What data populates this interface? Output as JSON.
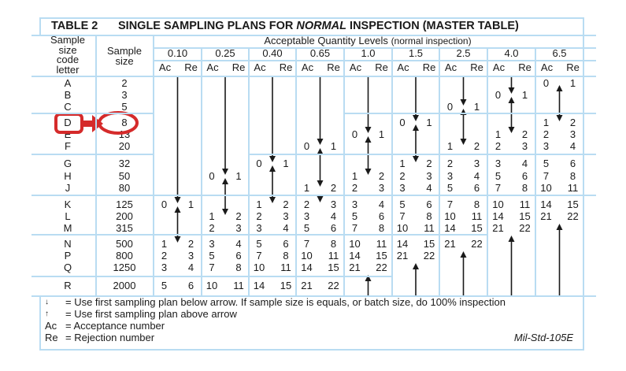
{
  "title": {
    "table_no": "TABLE 2",
    "prefix": "SINGLE SAMPLING PLANS FOR ",
    "emphasis": "NORMAL",
    "suffix": " INSPECTION (MASTER TABLE)"
  },
  "header": {
    "code_letter": [
      "Sample",
      "size",
      "code",
      "letter"
    ],
    "sample_size": [
      "Sample",
      "size"
    ],
    "aql_title": "Acceptable Quantity Levels",
    "aql_subtitle": "(normal inspection)",
    "ac": "Ac",
    "re": "Re"
  },
  "rows": [
    {
      "letter": "A",
      "size": "2"
    },
    {
      "letter": "B",
      "size": "3"
    },
    {
      "letter": "C",
      "size": "5"
    },
    {
      "letter": "D",
      "size": "8"
    },
    {
      "letter": "E",
      "size": "13"
    },
    {
      "letter": "F",
      "size": "20"
    },
    {
      "letter": "G",
      "size": "32"
    },
    {
      "letter": "H",
      "size": "50"
    },
    {
      "letter": "J",
      "size": "80"
    },
    {
      "letter": "K",
      "size": "125"
    },
    {
      "letter": "L",
      "size": "200"
    },
    {
      "letter": "M",
      "size": "315"
    },
    {
      "letter": "N",
      "size": "500"
    },
    {
      "letter": "P",
      "size": "800"
    },
    {
      "letter": "Q",
      "size": "1250"
    },
    {
      "letter": "R",
      "size": "2000"
    }
  ],
  "columns": [
    {
      "aql": "0.10",
      "down_to": "K",
      "link": [
        "K",
        "N"
      ],
      "up_to": null,
      "plans": {
        "K": [
          "0",
          "1"
        ],
        "N": [
          "1",
          "2"
        ],
        "P": [
          "2",
          "3"
        ],
        "Q": [
          "3",
          "4"
        ],
        "R": [
          "5",
          "6"
        ]
      }
    },
    {
      "aql": "0.25",
      "down_to": "H",
      "link": [
        "H",
        "L"
      ],
      "up_to": null,
      "plans": {
        "H": [
          "0",
          "1"
        ],
        "L": [
          "1",
          "2"
        ],
        "M": [
          "2",
          "3"
        ],
        "N": [
          "3",
          "4"
        ],
        "P": [
          "5",
          "6"
        ],
        "Q": [
          "7",
          "8"
        ],
        "R": [
          "10",
          "11"
        ]
      }
    },
    {
      "aql": "0.40",
      "down_to": "G",
      "link": [
        "G",
        "K"
      ],
      "up_to": null,
      "plans": {
        "G": [
          "0",
          "1"
        ],
        "K": [
          "1",
          "2"
        ],
        "L": [
          "2",
          "3"
        ],
        "M": [
          "3",
          "4"
        ],
        "N": [
          "5",
          "6"
        ],
        "P": [
          "7",
          "8"
        ],
        "Q": [
          "10",
          "11"
        ],
        "R": [
          "14",
          "15"
        ]
      }
    },
    {
      "aql": "0.65",
      "down_to": "F",
      "link": [
        "F",
        "J"
      ],
      "up_to": null,
      "extra_down_head": "K",
      "plans": {
        "F": [
          "0",
          "1"
        ],
        "J": [
          "1",
          "2"
        ],
        "K": [
          "2",
          "3"
        ],
        "L": [
          "3",
          "4"
        ],
        "M": [
          "5",
          "6"
        ],
        "N": [
          "7",
          "8"
        ],
        "P": [
          "10",
          "11"
        ],
        "Q": [
          "14",
          "15"
        ],
        "R": [
          "21",
          "22"
        ]
      }
    },
    {
      "aql": "1.0",
      "down_to": "E",
      "link": [
        "E",
        "H"
      ],
      "up_to": "Q",
      "plans": {
        "E": [
          "0",
          "1"
        ],
        "H": [
          "1",
          "2"
        ],
        "J": [
          "2",
          "3"
        ],
        "K": [
          "3",
          "4"
        ],
        "L": [
          "5",
          "6"
        ],
        "M": [
          "7",
          "8"
        ],
        "N": [
          "10",
          "11"
        ],
        "P": [
          "14",
          "15"
        ],
        "Q": [
          "21",
          "22"
        ]
      }
    },
    {
      "aql": "1.5",
      "down_to": "D",
      "link": [
        "D",
        "G"
      ],
      "up_to": "P",
      "plans": {
        "D": [
          "0",
          "1"
        ],
        "G": [
          "1",
          "2"
        ],
        "H": [
          "2",
          "3"
        ],
        "J": [
          "3",
          "4"
        ],
        "K": [
          "5",
          "6"
        ],
        "L": [
          "7",
          "8"
        ],
        "M": [
          "10",
          "11"
        ],
        "N": [
          "14",
          "15"
        ],
        "P": [
          "21",
          "22"
        ]
      }
    },
    {
      "aql": "2.5",
      "down_to": "C",
      "link": [
        "C",
        "F"
      ],
      "up_to": "N",
      "plans": {
        "C": [
          "0",
          "1"
        ],
        "F": [
          "1",
          "2"
        ],
        "G": [
          "2",
          "3"
        ],
        "H": [
          "3",
          "4"
        ],
        "J": [
          "5",
          "6"
        ],
        "K": [
          "7",
          "8"
        ],
        "L": [
          "10",
          "11"
        ],
        "M": [
          "14",
          "15"
        ],
        "N": [
          "21",
          "22"
        ]
      }
    },
    {
      "aql": "4.0",
      "down_to": "B",
      "link": [
        "B",
        "E"
      ],
      "up_to": "M",
      "plans": {
        "B": [
          "0",
          "1"
        ],
        "E": [
          "1",
          "2"
        ],
        "F": [
          "2",
          "3"
        ],
        "G": [
          "3",
          "4"
        ],
        "H": [
          "5",
          "6"
        ],
        "J": [
          "7",
          "8"
        ],
        "K": [
          "10",
          "11"
        ],
        "L": [
          "14",
          "15"
        ],
        "M": [
          "21",
          "22"
        ]
      }
    },
    {
      "aql": "6.5",
      "down_to": null,
      "link": [
        "A",
        "D"
      ],
      "up_to": "L",
      "plans": {
        "A": [
          "0",
          "1"
        ],
        "D": [
          "1",
          "2"
        ],
        "E": [
          "2",
          "3"
        ],
        "F": [
          "3",
          "4"
        ],
        "G": [
          "5",
          "6"
        ],
        "H": [
          "7",
          "8"
        ],
        "J": [
          "10",
          "11"
        ],
        "K": [
          "14",
          "15"
        ],
        "L": [
          "21",
          "22"
        ]
      }
    }
  ],
  "highlight": {
    "letter": "D",
    "size": "8",
    "color": "#d52b2b"
  },
  "legend": {
    "down_arrow": "= Use first sampling plan below arrow. If sample size is equals, or batch size, do 100% inspection",
    "up_arrow": "= Use first sampling plan above arrow",
    "ac_key": "Ac",
    "ac_text": "= Acceptance number",
    "re_key": "Re",
    "re_text": "= Rejection number",
    "source": "Mil-Std-105E"
  },
  "colors": {
    "grid": "#b9dcf2",
    "ink": "#1a1a1a"
  }
}
